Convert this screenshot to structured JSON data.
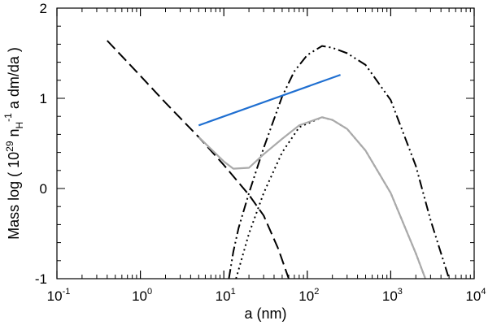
{
  "chart_data": {
    "type": "line",
    "title": "",
    "xlabel": "a (nm)",
    "ylabel": {
      "prefix": "Mass log ( 10",
      "sup1": "29",
      "mid": " n",
      "sub": "H",
      "sup2": "-1",
      "suffix": " a dm/da )"
    },
    "xscale": "log",
    "xlim": [
      0.1,
      10000
    ],
    "ylim": [
      -1,
      2
    ],
    "x_ticks": [
      {
        "base": "10",
        "exp": "-1",
        "value": 0.1
      },
      {
        "base": "10",
        "exp": "0",
        "value": 1
      },
      {
        "base": "10",
        "exp": "1",
        "value": 10
      },
      {
        "base": "10",
        "exp": "2",
        "value": 100
      },
      {
        "base": "10",
        "exp": "3",
        "value": 1000
      },
      {
        "base": "10",
        "exp": "4",
        "value": 10000
      }
    ],
    "y_ticks": [
      {
        "label": "-1",
        "value": -1
      },
      {
        "label": "0",
        "value": 0
      },
      {
        "label": "1",
        "value": 1
      },
      {
        "label": "2",
        "value": 2
      }
    ],
    "series": [
      {
        "style": "dash-dot-dot",
        "color": "#000000",
        "points": [
          [
            11.5,
            -1.0
          ],
          [
            13,
            -0.7
          ],
          [
            15,
            -0.44
          ],
          [
            20,
            -0.05
          ],
          [
            30,
            0.45
          ],
          [
            50,
            1.02
          ],
          [
            70,
            1.3
          ],
          [
            100,
            1.48
          ],
          [
            150,
            1.58
          ],
          [
            200,
            1.56
          ],
          [
            300,
            1.5
          ],
          [
            500,
            1.37
          ],
          [
            1000,
            0.98
          ],
          [
            2000,
            0.25
          ],
          [
            3000,
            -0.35
          ],
          [
            5000,
            -1.0
          ]
        ]
      },
      {
        "style": "dash",
        "color": "#000000",
        "points": [
          [
            0.4,
            1.64
          ],
          [
            1,
            1.25
          ],
          [
            2,
            0.95
          ],
          [
            5,
            0.57
          ],
          [
            10,
            0.26
          ],
          [
            20,
            -0.07
          ],
          [
            30,
            -0.3
          ],
          [
            45,
            -0.67
          ],
          [
            60,
            -1.0
          ]
        ]
      },
      {
        "style": "dot",
        "color": "#000000",
        "points": [
          [
            14,
            -1.0
          ],
          [
            20,
            -0.5
          ],
          [
            30,
            -0.05
          ],
          [
            50,
            0.4
          ],
          [
            80,
            0.68
          ],
          [
            150,
            0.79
          ],
          [
            200,
            0.76
          ],
          [
            300,
            0.66
          ],
          [
            500,
            0.42
          ],
          [
            1000,
            -0.05
          ],
          [
            2000,
            -0.72
          ],
          [
            2600,
            -1.0
          ]
        ]
      },
      {
        "style": "solid",
        "color": "#aaaaaa",
        "points": [
          [
            5,
            0.57
          ],
          [
            10,
            0.3
          ],
          [
            13,
            0.22
          ],
          [
            20,
            0.23
          ],
          [
            30,
            0.38
          ],
          [
            50,
            0.55
          ],
          [
            80,
            0.7
          ],
          [
            150,
            0.79
          ],
          [
            200,
            0.76
          ],
          [
            300,
            0.66
          ],
          [
            500,
            0.42
          ],
          [
            1000,
            -0.05
          ],
          [
            2000,
            -0.72
          ],
          [
            2600,
            -1.0
          ]
        ]
      },
      {
        "style": "solid",
        "color": "#1f6fd1",
        "points": [
          [
            5,
            0.7
          ],
          [
            250,
            1.26
          ]
        ]
      }
    ]
  }
}
